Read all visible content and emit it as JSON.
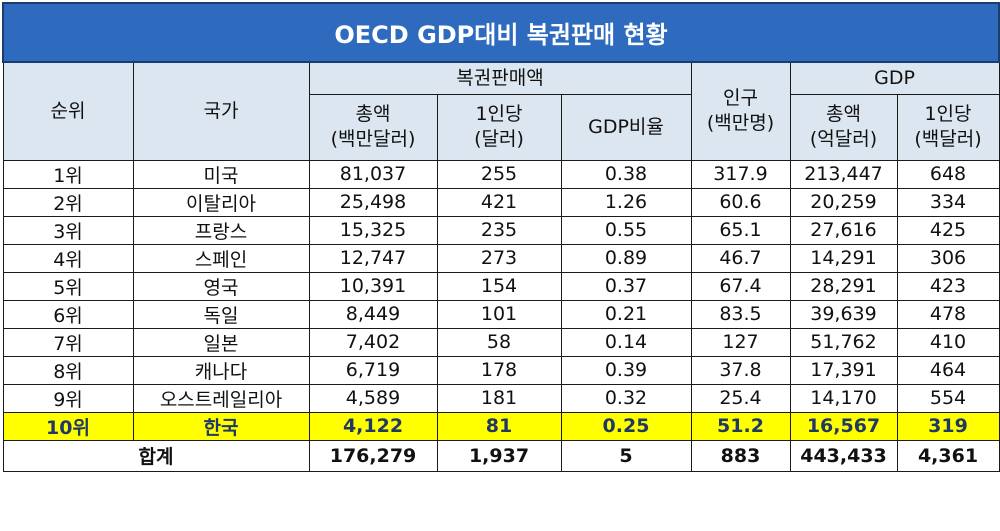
{
  "title": "OECD GDP대비 복권판매 현황",
  "headers": {
    "rank": "순위",
    "country": "국가",
    "lottery_sales": "복권판매액",
    "total": "총액",
    "total_unit": "(백만달러)",
    "per_capita": "1인당",
    "per_capita_unit": "(달러)",
    "gdp_ratio": "GDP비율",
    "population": "인구",
    "population_unit": "(백만명)",
    "gdp": "GDP",
    "gdp_total": "총액",
    "gdp_total_unit": "(억달러)",
    "gdp_per_capita": "1인당",
    "gdp_per_capita_unit": "(백달러)"
  },
  "rows": [
    {
      "rank": "1위",
      "country": "미국",
      "sales_total": "81,037",
      "sales_per_capita": "255",
      "gdp_ratio": "0.38",
      "population": "317.9",
      "gdp_total": "213,447",
      "gdp_per_capita": "648"
    },
    {
      "rank": "2위",
      "country": "이탈리아",
      "sales_total": "25,498",
      "sales_per_capita": "421",
      "gdp_ratio": "1.26",
      "population": "60.6",
      "gdp_total": "20,259",
      "gdp_per_capita": "334"
    },
    {
      "rank": "3위",
      "country": "프랑스",
      "sales_total": "15,325",
      "sales_per_capita": "235",
      "gdp_ratio": "0.55",
      "population": "65.1",
      "gdp_total": "27,616",
      "gdp_per_capita": "425"
    },
    {
      "rank": "4위",
      "country": "스페인",
      "sales_total": "12,747",
      "sales_per_capita": "273",
      "gdp_ratio": "0.89",
      "population": "46.7",
      "gdp_total": "14,291",
      "gdp_per_capita": "306"
    },
    {
      "rank": "5위",
      "country": "영국",
      "sales_total": "10,391",
      "sales_per_capita": "154",
      "gdp_ratio": "0.37",
      "population": "67.4",
      "gdp_total": "28,291",
      "gdp_per_capita": "423"
    },
    {
      "rank": "6위",
      "country": "독일",
      "sales_total": "8,449",
      "sales_per_capita": "101",
      "gdp_ratio": "0.21",
      "population": "83.5",
      "gdp_total": "39,639",
      "gdp_per_capita": "478"
    },
    {
      "rank": "7위",
      "country": "일본",
      "sales_total": "7,402",
      "sales_per_capita": "58",
      "gdp_ratio": "0.14",
      "population": "127",
      "gdp_total": "51,762",
      "gdp_per_capita": "410"
    },
    {
      "rank": "8위",
      "country": "캐나다",
      "sales_total": "6,719",
      "sales_per_capita": "178",
      "gdp_ratio": "0.39",
      "population": "37.8",
      "gdp_total": "17,391",
      "gdp_per_capita": "464"
    },
    {
      "rank": "9위",
      "country": "오스트레일리아",
      "sales_total": "4,589",
      "sales_per_capita": "181",
      "gdp_ratio": "0.32",
      "population": "25.4",
      "gdp_total": "14,170",
      "gdp_per_capita": "554"
    },
    {
      "rank": "10위",
      "country": "한국",
      "sales_total": "4,122",
      "sales_per_capita": "81",
      "gdp_ratio": "0.25",
      "population": "51.2",
      "gdp_total": "16,567",
      "gdp_per_capita": "319"
    }
  ],
  "total_row": {
    "label": "합계",
    "sales_total": "176,279",
    "sales_per_capita": "1,937",
    "gdp_ratio": "5",
    "population": "883",
    "gdp_total": "443,433",
    "gdp_per_capita": "4,361"
  },
  "colors": {
    "title_bg": "#2e6bbf",
    "header_bg": "#dce6f1",
    "highlight_bg": "#ffff00",
    "highlight_text": "#1f3864"
  }
}
